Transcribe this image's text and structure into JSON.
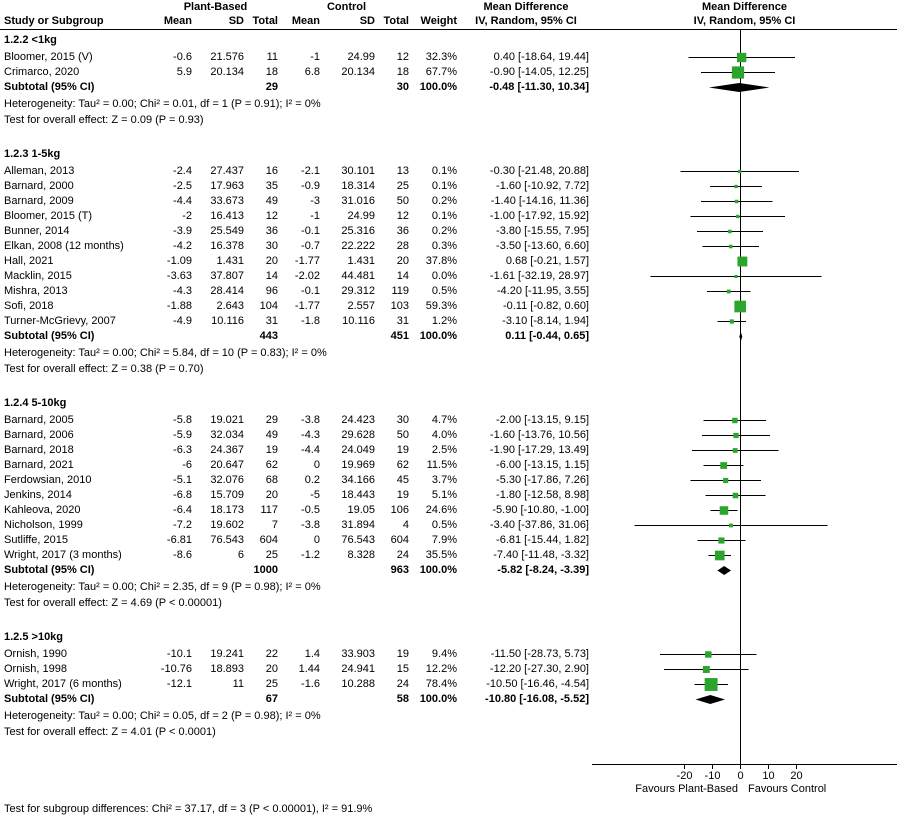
{
  "header": {
    "groups": {
      "plant_based": "Plant-Based",
      "control": "Control",
      "mean_difference": "Mean Difference"
    },
    "columns": {
      "study": "Study or Subgroup",
      "mean": "Mean",
      "sd": "SD",
      "total": "Total",
      "weight": "Weight",
      "effect": "IV, Random, 95% CI"
    }
  },
  "labels": {
    "subtotal": "Subtotal (95% CI)"
  },
  "axis": {
    "favours_left": "Favours Plant-Based",
    "favours_right": "Favours Control"
  },
  "footer": {
    "subgroup_test": "Test for subgroup differences: Chi² = 37.17, df = 3 (P < 0.00001), I² = 91.9%"
  },
  "colors": {
    "marker": "#2BA52B",
    "diamond": "#000000",
    "ci_line": "#000000"
  },
  "chart_data": {
    "type": "forest",
    "effect_label": "Mean Difference",
    "model": "IV, Random, 95% CI",
    "x_ticks": [
      -20,
      -10,
      0,
      10,
      20
    ],
    "x_axis_visible_range": [
      -52,
      55
    ],
    "favours": [
      "Favours Plant-Based",
      "Favours Control"
    ],
    "subgroups": [
      {
        "label": "1.2.2 <1kg",
        "studies": [
          {
            "name": "Bloomer, 2015 (V)",
            "pb_mean": -0.6,
            "pb_sd": 21.576,
            "pb_total": 11,
            "c_mean": -1,
            "c_sd": 24.99,
            "c_total": 12,
            "weight": 32.3,
            "est": 0.4,
            "lo": -18.64,
            "hi": 19.44
          },
          {
            "name": "Crimarco, 2020",
            "pb_mean": 5.9,
            "pb_sd": 20.134,
            "pb_total": 18,
            "c_mean": 6.8,
            "c_sd": 20.134,
            "c_total": 18,
            "weight": 67.7,
            "est": -0.9,
            "lo": -14.05,
            "hi": 12.25
          }
        ],
        "subtotal": {
          "pb_total": 29,
          "c_total": 30,
          "weight": 100.0,
          "est": -0.48,
          "lo": -11.3,
          "hi": 10.34
        },
        "heterogeneity": "Heterogeneity: Tau² = 0.00; Chi² = 0.01, df = 1 (P = 0.91); I² = 0%",
        "overall_effect": "Test for overall effect: Z = 0.09 (P = 0.93)"
      },
      {
        "label": "1.2.3 1-5kg",
        "studies": [
          {
            "name": "Alleman, 2013",
            "pb_mean": -2.4,
            "pb_sd": 27.437,
            "pb_total": 16,
            "c_mean": -2.1,
            "c_sd": 30.101,
            "c_total": 13,
            "weight": 0.1,
            "est": -0.3,
            "lo": -21.48,
            "hi": 20.88
          },
          {
            "name": "Barnard, 2000",
            "pb_mean": -2.5,
            "pb_sd": 17.963,
            "pb_total": 35,
            "c_mean": -0.9,
            "c_sd": 18.314,
            "c_total": 25,
            "weight": 0.1,
            "est": -1.6,
            "lo": -10.92,
            "hi": 7.72
          },
          {
            "name": "Barnard, 2009",
            "pb_mean": -4.4,
            "pb_sd": 33.673,
            "pb_total": 49,
            "c_mean": -3,
            "c_sd": 31.016,
            "c_total": 50,
            "weight": 0.2,
            "est": -1.4,
            "lo": -14.16,
            "hi": 11.36
          },
          {
            "name": "Bloomer, 2015 (T)",
            "pb_mean": -2,
            "pb_sd": 16.413,
            "pb_total": 12,
            "c_mean": -1,
            "c_sd": 24.99,
            "c_total": 12,
            "weight": 0.1,
            "est": -1.0,
            "lo": -17.92,
            "hi": 15.92
          },
          {
            "name": "Bunner, 2014",
            "pb_mean": -3.9,
            "pb_sd": 25.549,
            "pb_total": 36,
            "c_mean": -0.1,
            "c_sd": 25.316,
            "c_total": 36,
            "weight": 0.2,
            "est": -3.8,
            "lo": -15.55,
            "hi": 7.95
          },
          {
            "name": "Elkan, 2008 (12 months)",
            "pb_mean": -4.2,
            "pb_sd": 16.378,
            "pb_total": 30,
            "c_mean": -0.7,
            "c_sd": 22.222,
            "c_total": 28,
            "weight": 0.3,
            "est": -3.5,
            "lo": -13.6,
            "hi": 6.6
          },
          {
            "name": "Hall, 2021",
            "pb_mean": -1.09,
            "pb_sd": 1.431,
            "pb_total": 20,
            "c_mean": -1.77,
            "c_sd": 1.431,
            "c_total": 20,
            "weight": 37.8,
            "est": 0.68,
            "lo": -0.21,
            "hi": 1.57
          },
          {
            "name": "Macklin, 2015",
            "pb_mean": -3.63,
            "pb_sd": 37.807,
            "pb_total": 14,
            "c_mean": -2.02,
            "c_sd": 44.481,
            "c_total": 14,
            "weight": 0.0,
            "est": -1.61,
            "lo": -32.19,
            "hi": 28.97
          },
          {
            "name": "Mishra, 2013",
            "pb_mean": -4.3,
            "pb_sd": 28.414,
            "pb_total": 96,
            "c_mean": -0.1,
            "c_sd": 29.312,
            "c_total": 119,
            "weight": 0.5,
            "est": -4.2,
            "lo": -11.95,
            "hi": 3.55
          },
          {
            "name": "Sofi, 2018",
            "pb_mean": -1.88,
            "pb_sd": 2.643,
            "pb_total": 104,
            "c_mean": -1.77,
            "c_sd": 2.557,
            "c_total": 103,
            "weight": 59.3,
            "est": -0.11,
            "lo": -0.82,
            "hi": 0.6
          },
          {
            "name": "Turner-McGrievy, 2007",
            "pb_mean": -4.9,
            "pb_sd": 10.116,
            "pb_total": 31,
            "c_mean": -1.8,
            "c_sd": 10.116,
            "c_total": 31,
            "weight": 1.2,
            "est": -3.1,
            "lo": -8.14,
            "hi": 1.94
          }
        ],
        "subtotal": {
          "pb_total": 443,
          "c_total": 451,
          "weight": 100.0,
          "est": 0.11,
          "lo": -0.44,
          "hi": 0.65
        },
        "heterogeneity": "Heterogeneity: Tau² = 0.00; Chi² = 5.84, df = 10 (P = 0.83); I² = 0%",
        "overall_effect": "Test for overall effect: Z = 0.38 (P = 0.70)"
      },
      {
        "label": "1.2.4 5-10kg",
        "studies": [
          {
            "name": "Barnard, 2005",
            "pb_mean": -5.8,
            "pb_sd": 19.021,
            "pb_total": 29,
            "c_mean": -3.8,
            "c_sd": 24.423,
            "c_total": 30,
            "weight": 4.7,
            "est": -2.0,
            "lo": -13.15,
            "hi": 9.15
          },
          {
            "name": "Barnard, 2006",
            "pb_mean": -5.9,
            "pb_sd": 32.034,
            "pb_total": 49,
            "c_mean": -4.3,
            "c_sd": 29.628,
            "c_total": 50,
            "weight": 4.0,
            "est": -1.6,
            "lo": -13.76,
            "hi": 10.56
          },
          {
            "name": "Barnard, 2018",
            "pb_mean": -6.3,
            "pb_sd": 24.367,
            "pb_total": 19,
            "c_mean": -4.4,
            "c_sd": 24.049,
            "c_total": 19,
            "weight": 2.5,
            "est": -1.9,
            "lo": -17.29,
            "hi": 13.49
          },
          {
            "name": "Barnard, 2021",
            "pb_mean": -6,
            "pb_sd": 20.647,
            "pb_total": 62,
            "c_mean": 0,
            "c_sd": 19.969,
            "c_total": 62,
            "weight": 11.5,
            "est": -6.0,
            "lo": -13.15,
            "hi": 1.15
          },
          {
            "name": "Ferdowsian, 2010",
            "pb_mean": -5.1,
            "pb_sd": 32.076,
            "pb_total": 68,
            "c_mean": 0.2,
            "c_sd": 34.166,
            "c_total": 45,
            "weight": 3.7,
            "est": -5.3,
            "lo": -17.86,
            "hi": 7.26
          },
          {
            "name": "Jenkins, 2014",
            "pb_mean": -6.8,
            "pb_sd": 15.709,
            "pb_total": 20,
            "c_mean": -5,
            "c_sd": 18.443,
            "c_total": 19,
            "weight": 5.1,
            "est": -1.8,
            "lo": -12.58,
            "hi": 8.98
          },
          {
            "name": "Kahleova, 2020",
            "pb_mean": -6.4,
            "pb_sd": 18.173,
            "pb_total": 117,
            "c_mean": -0.5,
            "c_sd": 19.05,
            "c_total": 106,
            "weight": 24.6,
            "est": -5.9,
            "lo": -10.8,
            "hi": -1.0
          },
          {
            "name": "Nicholson, 1999",
            "pb_mean": -7.2,
            "pb_sd": 19.602,
            "pb_total": 7,
            "c_mean": -3.8,
            "c_sd": 31.894,
            "c_total": 4,
            "weight": 0.5,
            "est": -3.4,
            "lo": -37.86,
            "hi": 31.06
          },
          {
            "name": "Sutliffe, 2015",
            "pb_mean": -6.81,
            "pb_sd": 76.543,
            "pb_total": 604,
            "c_mean": 0,
            "c_sd": 76.543,
            "c_total": 604,
            "weight": 7.9,
            "est": -6.81,
            "lo": -15.44,
            "hi": 1.82
          },
          {
            "name": "Wright, 2017 (3 months)",
            "pb_mean": -8.6,
            "pb_sd": 6,
            "pb_total": 25,
            "c_mean": -1.2,
            "c_sd": 8.328,
            "c_total": 24,
            "weight": 35.5,
            "est": -7.4,
            "lo": -11.48,
            "hi": -3.32
          }
        ],
        "subtotal": {
          "pb_total": 1000,
          "c_total": 963,
          "weight": 100.0,
          "est": -5.82,
          "lo": -8.24,
          "hi": -3.39
        },
        "heterogeneity": "Heterogeneity: Tau² = 0.00; Chi² = 2.35, df = 9 (P = 0.98); I² = 0%",
        "overall_effect": "Test for overall effect: Z = 4.69 (P < 0.00001)"
      },
      {
        "label": "1.2.5 >10kg",
        "studies": [
          {
            "name": "Ornish, 1990",
            "pb_mean": -10.1,
            "pb_sd": 19.241,
            "pb_total": 22,
            "c_mean": 1.4,
            "c_sd": 33.903,
            "c_total": 19,
            "weight": 9.4,
            "est": -11.5,
            "lo": -28.73,
            "hi": 5.73
          },
          {
            "name": "Ornish, 1998",
            "pb_mean": -10.76,
            "pb_sd": 18.893,
            "pb_total": 20,
            "c_mean": 1.44,
            "c_sd": 24.941,
            "c_total": 15,
            "weight": 12.2,
            "est": -12.2,
            "lo": -27.3,
            "hi": 2.9
          },
          {
            "name": "Wright, 2017 (6 months)",
            "pb_mean": -12.1,
            "pb_sd": 11,
            "pb_total": 25,
            "c_mean": -1.6,
            "c_sd": 10.288,
            "c_total": 24,
            "weight": 78.4,
            "est": -10.5,
            "lo": -16.46,
            "hi": -4.54
          }
        ],
        "subtotal": {
          "pb_total": 67,
          "c_total": 58,
          "weight": 100.0,
          "est": -10.8,
          "lo": -16.08,
          "hi": -5.52
        },
        "heterogeneity": "Heterogeneity: Tau² = 0.00; Chi² = 0.05, df = 2 (P = 0.98); I² = 0%",
        "overall_effect": "Test for overall effect: Z = 4.01 (P < 0.0001)"
      }
    ]
  }
}
